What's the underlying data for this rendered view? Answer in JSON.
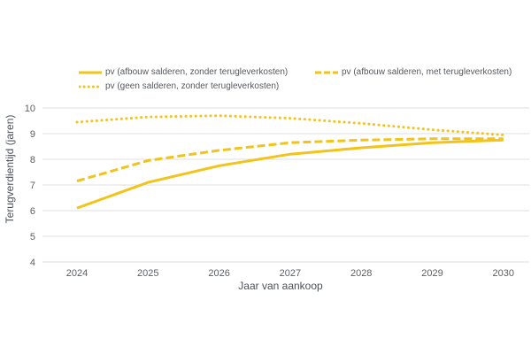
{
  "chart_data": {
    "type": "line",
    "title": "",
    "xlabel": "Jaar van aankoop",
    "ylabel": "Terugverdientijd (jaren)",
    "categories": [
      "2024",
      "2025",
      "2026",
      "2027",
      "2028",
      "2029",
      "2030"
    ],
    "ylim": [
      4,
      10
    ],
    "yticks": [
      4,
      5,
      6,
      7,
      8,
      9,
      10
    ],
    "grid": true,
    "legend_position": "top",
    "series": [
      {
        "name": "pv (afbouw salderen, zonder terugleverkosten)",
        "style": "solid",
        "color": "#f2c31b",
        "values": [
          6.1,
          7.1,
          7.75,
          8.2,
          8.45,
          8.65,
          8.75
        ]
      },
      {
        "name": "pv (afbouw salderen, met terugleverkosten)",
        "style": "dashed",
        "color": "#f2c31b",
        "values": [
          7.15,
          7.95,
          8.35,
          8.65,
          8.75,
          8.8,
          8.8
        ]
      },
      {
        "name": "pv (geen salderen, zonder terugleverkosten)",
        "style": "dotted",
        "color": "#f2c31b",
        "values": [
          9.45,
          9.65,
          9.7,
          9.6,
          9.4,
          9.15,
          8.95
        ]
      }
    ]
  }
}
